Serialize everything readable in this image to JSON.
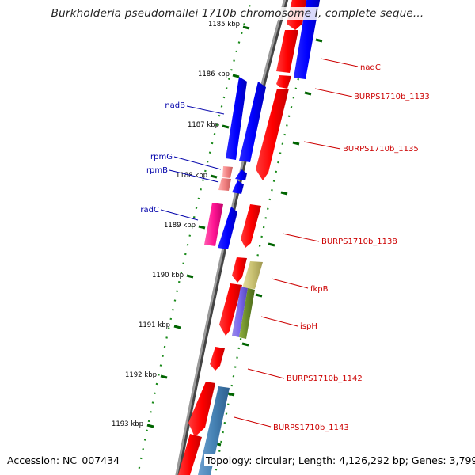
{
  "title": "Burkholderia pseudomallei 1710b chromosome I, complete seque...",
  "footer": {
    "accession": "Accession: NC_007434",
    "topology": "Topology: circular; Length: 4,126,292 bp; Genes: 3,799"
  },
  "ticks": [
    "1185 kbp",
    "1186 kbp",
    "1187 kbp",
    "1188 kbp",
    "1189 kbp",
    "1190 kbp",
    "1191 kbp",
    "1192 kbp",
    "1193 kbp"
  ],
  "genes": [
    {
      "name": "nadC",
      "strand": "forward",
      "color": "#ff0000"
    },
    {
      "name": "BURPS1710b_1133",
      "strand": "forward",
      "color": "#ff0000"
    },
    {
      "name": "BURPS1710b_1135",
      "strand": "forward",
      "color": "#ff0000"
    },
    {
      "name": "BURPS1710b_1138",
      "strand": "forward",
      "color": "#ff0000"
    },
    {
      "name": "fkpB",
      "strand": "forward",
      "color": "#c8c070"
    },
    {
      "name": "ispH",
      "strand": "forward",
      "color": "#6a8a2a"
    },
    {
      "name": "BURPS1710b_1142",
      "strand": "forward",
      "color": "#ff0000"
    },
    {
      "name": "BURPS1710b_1143",
      "strand": "forward",
      "color": "#ff0000"
    },
    {
      "name": "nadB",
      "strand": "reverse",
      "color": "#0000ff"
    },
    {
      "name": "rpmG",
      "strand": "reverse",
      "color": "#f08080"
    },
    {
      "name": "rpmB",
      "strand": "reverse",
      "color": "#f08080"
    },
    {
      "name": "radC",
      "strand": "reverse",
      "color": "#ff1493"
    }
  ]
}
